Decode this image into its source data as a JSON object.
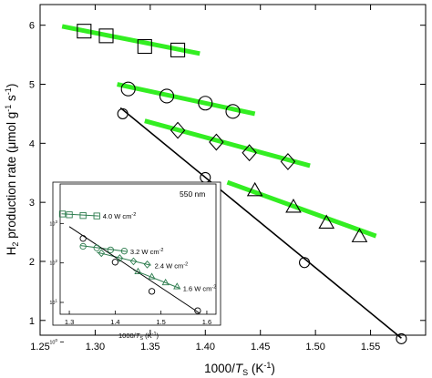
{
  "chart_data": [
    {
      "type": "scatter",
      "title": "",
      "xlabel_pre": "1000/",
      "xlabel_var": "T",
      "xlabel_sub": "S",
      "xlabel_post": " (K",
      "xlabel_exp": "-1",
      "xlabel_end": ")",
      "ylabel_pre": "H",
      "ylabel_sub": "2",
      "ylabel_mid": " production rate (",
      "ylabel_mu": "μ",
      "ylabel_unit": "mol g",
      "ylabel_exp1": "-1",
      "ylabel_s": " s",
      "ylabel_exp2": "-1",
      "ylabel_end": ")",
      "xlim": [
        1.25,
        1.6
      ],
      "ylim": [
        0.75,
        6.35
      ],
      "xticks": [
        1.25,
        1.3,
        1.35,
        1.4,
        1.45,
        1.5,
        1.55
      ],
      "xtick_labels": [
        "1.25",
        "1.30",
        "1.35",
        "1.40",
        "1.45",
        "1.50",
        "1.55"
      ],
      "yticks": [
        1,
        2,
        3,
        4,
        5,
        6
      ],
      "ytick_labels": [
        "1",
        "2",
        "3",
        "4",
        "5",
        "6"
      ],
      "grid": false,
      "series": [
        {
          "marker": "square",
          "color": "#000000",
          "line_color": "#33ee22",
          "x": [
            1.29,
            1.31,
            1.345,
            1.375
          ],
          "y": [
            5.9,
            5.82,
            5.64,
            5.58
          ],
          "fit_x": [
            1.27,
            1.395
          ],
          "fit_y": [
            5.98,
            5.52
          ]
        },
        {
          "marker": "circle",
          "color": "#000000",
          "line_color": "#33ee22",
          "x": [
            1.33,
            1.365,
            1.4,
            1.425
          ],
          "y": [
            4.92,
            4.8,
            4.68,
            4.54
          ],
          "fit_x": [
            1.32,
            1.445
          ],
          "fit_y": [
            5.0,
            4.5
          ]
        },
        {
          "marker": "diamond",
          "color": "#000000",
          "line_color": "#33ee22",
          "x": [
            1.375,
            1.41,
            1.44,
            1.475
          ],
          "y": [
            4.22,
            4.02,
            3.84,
            3.69
          ],
          "fit_x": [
            1.345,
            1.495
          ],
          "fit_y": [
            4.38,
            3.62
          ]
        },
        {
          "marker": "triangle",
          "color": "#000000",
          "line_color": "#33ee22",
          "x": [
            1.445,
            1.48,
            1.51,
            1.54
          ],
          "y": [
            3.2,
            2.92,
            2.65,
            2.42
          ],
          "fit_x": [
            1.42,
            1.555
          ],
          "fit_y": [
            3.34,
            2.43
          ]
        },
        {
          "marker": "open-circle",
          "color": "#000000",
          "line_color": "#000000",
          "x": [
            1.325,
            1.4,
            1.49,
            1.578
          ],
          "y": [
            4.5,
            3.42,
            1.98,
            0.69
          ],
          "fit_x": [
            1.323,
            1.578
          ],
          "fit_y": [
            4.6,
            0.7
          ]
        }
      ]
    },
    {
      "type": "scatter",
      "title": "",
      "annotation": "550 nm",
      "xlabel_pre": "1000/",
      "xlabel_var": "T",
      "xlabel_sub": "S",
      "xlabel_post": " (K",
      "xlabel_exp": "-1",
      "xlabel_end": ")",
      "xlim": [
        1.28,
        1.62
      ],
      "ylim_log": [
        0.7,
        4.0
      ],
      "log_y": true,
      "xticks": [
        1.3,
        1.4,
        1.5,
        1.6
      ],
      "xtick_labels": [
        "1.3",
        "1.4",
        "1.5",
        "1.6"
      ],
      "yticks": [
        1,
        10,
        100,
        1000
      ],
      "ytick_base": "10",
      "ytick_exps": [
        "0",
        "1",
        "2",
        "3"
      ],
      "series": [
        {
          "name": "4.0 W cm",
          "name_exp": "-2",
          "marker": "square",
          "color": "#2e7d4f",
          "x": [
            1.285,
            1.3,
            1.33,
            1.36
          ],
          "y": [
            3.24,
            3.22,
            3.2,
            3.19
          ],
          "fit_x": [
            1.283,
            1.365
          ],
          "fit_y": [
            3.245,
            3.19
          ]
        },
        {
          "name": "3.2 W cm",
          "name_exp": "-2",
          "marker": "circle",
          "color": "#2e7d4f",
          "x": [
            1.33,
            1.36,
            1.39,
            1.42
          ],
          "y": [
            2.42,
            2.38,
            2.33,
            2.3
          ],
          "fit_x": [
            1.325,
            1.425
          ],
          "fit_y": [
            2.44,
            2.29
          ]
        },
        {
          "name": "2.4 W cm",
          "name_exp": "-2",
          "marker": "diamond",
          "color": "#2e7d4f",
          "x": [
            1.37,
            1.41,
            1.44,
            1.47
          ],
          "y": [
            2.25,
            2.12,
            2.04,
            1.96
          ],
          "fit_x": [
            1.36,
            1.478
          ],
          "fit_y": [
            2.27,
            1.94
          ]
        },
        {
          "name": "1.6 W cm",
          "name_exp": "-2",
          "marker": "triangle",
          "color": "#2e7d4f",
          "x": [
            1.45,
            1.48,
            1.51,
            1.535
          ],
          "y": [
            1.78,
            1.65,
            1.5,
            1.4
          ],
          "fit_x": [
            1.44,
            1.54
          ],
          "fit_y": [
            1.82,
            1.36
          ]
        },
        {
          "marker": "open-circle",
          "color": "#000000",
          "x": [
            1.33,
            1.4,
            1.48,
            1.58
          ],
          "y": [
            2.62,
            2.02,
            1.28,
            0.79
          ],
          "fit_x": [
            1.3,
            1.585
          ],
          "fit_y": [
            2.92,
            0.72
          ]
        }
      ]
    }
  ]
}
